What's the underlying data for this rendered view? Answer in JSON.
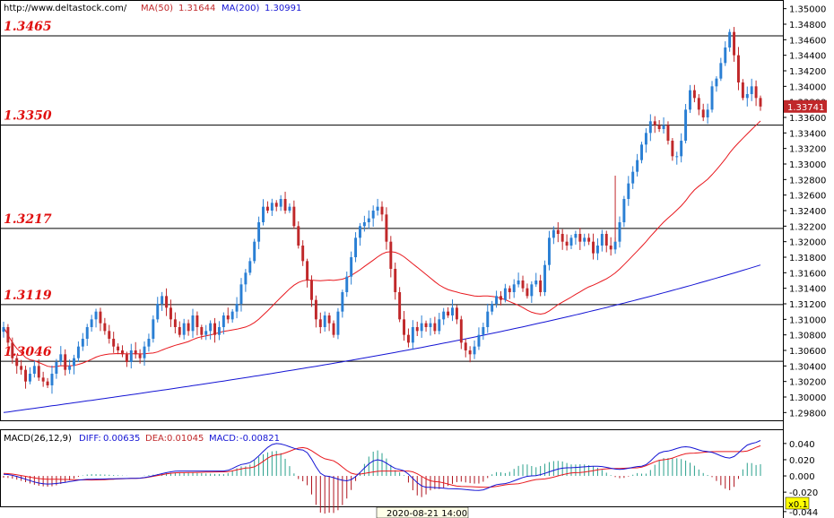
{
  "header": {
    "url": "http://www.deltastock.com/",
    "ma50_label": "MA(50)",
    "ma50_value": "1.31644",
    "ma200_label": "MA(200)",
    "ma200_value": "1.30991"
  },
  "macd_header": {
    "title": "MACD(26,12,9)",
    "diff_label": "DIFF:",
    "diff_value": "0.00635",
    "dea_label": "DEA:",
    "dea_value": "0.01045",
    "macd_label": "MACD:",
    "macd_value": "-0.00821"
  },
  "current_price": "1.33741",
  "scale_badge": "x0.1",
  "cursor_time": "2020-08-21 14:00",
  "colors": {
    "up": "#2a7fd4",
    "down": "#c0282a",
    "ma50": "#e8181e",
    "ma200": "#1414d4",
    "macd_hist": "#2aa08c",
    "macd_hist_neg": "#b0141e",
    "diff": "#1414d4",
    "dea": "#e8181e",
    "level_text": "#e01010",
    "badge_bg": "#c0282a",
    "scale_badge_bg": "#ffff00"
  },
  "chart_data": [
    {
      "type": "candlestick",
      "title": "",
      "ylim": [
        1.297,
        1.351
      ],
      "y_ticks": [
        "1.35000",
        "1.34800",
        "1.34600",
        "1.34400",
        "1.34200",
        "1.34000",
        "1.33800",
        "1.33600",
        "1.33400",
        "1.33200",
        "1.33000",
        "1.32800",
        "1.32600",
        "1.32400",
        "1.32200",
        "1.32000",
        "1.31800",
        "1.31600",
        "1.31400",
        "1.31200",
        "1.31000",
        "1.30800",
        "1.30600",
        "1.30400",
        "1.30200",
        "1.30000",
        "1.29800"
      ],
      "levels": [
        {
          "label": "1.3465",
          "value": 1.3465
        },
        {
          "label": "1.3350",
          "value": 1.335
        },
        {
          "label": "1.3217",
          "value": 1.3217
        },
        {
          "label": "1.3119",
          "value": 1.3119
        },
        {
          "label": "1.3046",
          "value": 1.3046
        }
      ],
      "close": [
        1.309,
        1.307,
        1.305,
        1.304,
        1.3035,
        1.302,
        1.303,
        1.304,
        1.3025,
        1.302,
        1.3015,
        1.303,
        1.3045,
        1.3055,
        1.3035,
        1.304,
        1.305,
        1.3065,
        1.3075,
        1.309,
        1.31,
        1.311,
        1.3095,
        1.3085,
        1.3075,
        1.3065,
        1.306,
        1.3055,
        1.3045,
        1.306,
        1.3055,
        1.305,
        1.3065,
        1.3075,
        1.31,
        1.312,
        1.313,
        1.3115,
        1.31,
        1.309,
        1.308,
        1.3095,
        1.3085,
        1.3105,
        1.309,
        1.308,
        1.3085,
        1.3095,
        1.308,
        1.309,
        1.3105,
        1.31,
        1.311,
        1.312,
        1.3145,
        1.316,
        1.3175,
        1.32,
        1.3225,
        1.3245,
        1.324,
        1.325,
        1.3245,
        1.3255,
        1.324,
        1.3245,
        1.322,
        1.3195,
        1.3175,
        1.315,
        1.3125,
        1.31,
        1.309,
        1.3105,
        1.3095,
        1.308,
        1.311,
        1.3135,
        1.3155,
        1.318,
        1.3205,
        1.322,
        1.3225,
        1.323,
        1.324,
        1.3245,
        1.3235,
        1.32,
        1.3165,
        1.3135,
        1.31,
        1.308,
        1.307,
        1.309,
        1.3085,
        1.3095,
        1.309,
        1.3095,
        1.3085,
        1.31,
        1.311,
        1.3105,
        1.3115,
        1.31,
        1.307,
        1.306,
        1.3055,
        1.3065,
        1.308,
        1.309,
        1.311,
        1.312,
        1.313,
        1.3125,
        1.314,
        1.3135,
        1.3145,
        1.315,
        1.314,
        1.313,
        1.3145,
        1.315,
        1.3135,
        1.317,
        1.3205,
        1.3215,
        1.321,
        1.32,
        1.3195,
        1.3205,
        1.321,
        1.32,
        1.3205,
        1.32,
        1.3185,
        1.3195,
        1.321,
        1.3195,
        1.319,
        1.32,
        1.3225,
        1.3255,
        1.3275,
        1.329,
        1.3305,
        1.3325,
        1.334,
        1.3355,
        1.335,
        1.3345,
        1.335,
        1.333,
        1.331,
        1.331,
        1.333,
        1.337,
        1.3395,
        1.3385,
        1.337,
        1.336,
        1.337,
        1.34,
        1.341,
        1.343,
        1.345,
        1.347,
        1.344,
        1.3405,
        1.3385,
        1.339,
        1.34,
        1.3385,
        1.3374
      ]
    },
    {
      "type": "macd",
      "title": "MACD(26,12,9)",
      "ylim": [
        -0.032,
        0.052
      ],
      "y_ticks": [
        "0.040",
        "0.020",
        "0.000",
        "-0.020",
        "-0.044"
      ],
      "diff_anchor": [
        [
          0,
          0.002
        ],
        [
          10,
          -0.01
        ],
        [
          20,
          -0.004
        ],
        [
          30,
          -0.003
        ],
        [
          40,
          0.006
        ],
        [
          50,
          0.006
        ],
        [
          55,
          0.015
        ],
        [
          62,
          0.04
        ],
        [
          68,
          0.032
        ],
        [
          73,
          0.0
        ],
        [
          78,
          -0.006
        ],
        [
          85,
          0.02
        ],
        [
          90,
          0.008
        ],
        [
          96,
          -0.014
        ],
        [
          103,
          -0.016
        ],
        [
          108,
          -0.018
        ],
        [
          113,
          -0.01
        ],
        [
          120,
          0.0
        ],
        [
          128,
          0.01
        ],
        [
          135,
          0.012
        ],
        [
          140,
          0.008
        ],
        [
          145,
          0.012
        ],
        [
          150,
          0.03
        ],
        [
          155,
          0.036
        ],
        [
          160,
          0.03
        ],
        [
          165,
          0.022
        ],
        [
          170,
          0.04
        ],
        [
          173,
          0.045
        ],
        [
          177,
          0.035
        ],
        [
          181,
          0.026
        ]
      ],
      "dea_anchor": [
        [
          0,
          0.003
        ],
        [
          10,
          -0.004
        ],
        [
          20,
          -0.005
        ],
        [
          30,
          -0.003
        ],
        [
          40,
          0.004
        ],
        [
          50,
          0.005
        ],
        [
          56,
          0.01
        ],
        [
          62,
          0.026
        ],
        [
          68,
          0.035
        ],
        [
          74,
          0.02
        ],
        [
          80,
          0.002
        ],
        [
          86,
          0.006
        ],
        [
          92,
          0.006
        ],
        [
          98,
          -0.007
        ],
        [
          104,
          -0.013
        ],
        [
          110,
          -0.014
        ],
        [
          116,
          -0.01
        ],
        [
          122,
          -0.004
        ],
        [
          130,
          0.004
        ],
        [
          138,
          0.009
        ],
        [
          144,
          0.01
        ],
        [
          150,
          0.02
        ],
        [
          156,
          0.028
        ],
        [
          162,
          0.03
        ],
        [
          168,
          0.03
        ],
        [
          173,
          0.038
        ],
        [
          177,
          0.036
        ],
        [
          181,
          0.03
        ]
      ]
    }
  ]
}
